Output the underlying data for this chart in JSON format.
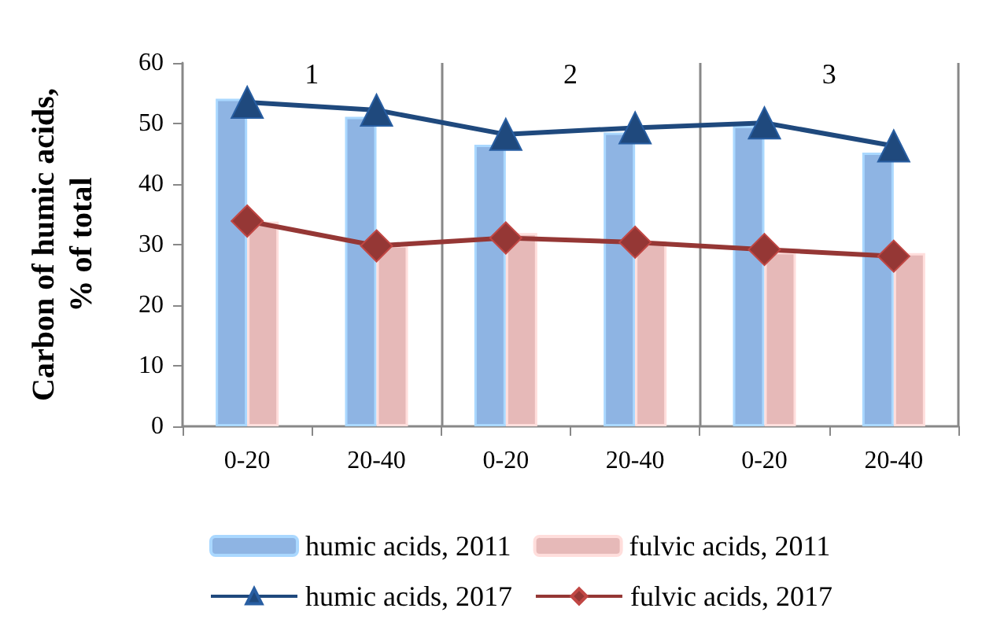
{
  "chart_data": {
    "type": "bar",
    "ylabel": "Carbon of humic acids, % of total",
    "categories": [
      "0-20",
      "20-40",
      "0-20",
      "20-40",
      "0-20",
      "20-40"
    ],
    "series": [
      {
        "name": "humic acids, 2011",
        "color": "#8eb4e3",
        "values": [
          54.1,
          51.1,
          46.5,
          48.5,
          49.6,
          45.2
        ]
      },
      {
        "name": "fulvic acids, 2011",
        "color": "#e6b9b8",
        "values": [
          33.8,
          29.9,
          31.9,
          30.6,
          28.8,
          28.6
        ]
      },
      {
        "name": "humic acids, 2017",
        "type": "line",
        "color": "#1f497d",
        "marker": "triangle",
        "values": [
          53.5,
          52.2,
          48.2,
          49.3,
          50.1,
          46.3
        ]
      },
      {
        "name": "fulvic acids, 2017",
        "type": "line",
        "color": "#953735",
        "marker": "diamond",
        "values": [
          33.9,
          29.8,
          31.1,
          30.4,
          29.2,
          28.1
        ]
      }
    ],
    "annotations": [
      "1",
      "2",
      "3"
    ],
    "ylim": [
      0,
      60
    ],
    "yticks": [
      0,
      10,
      20,
      30,
      40,
      50,
      60
    ],
    "grid": false,
    "legend": "bottom"
  }
}
